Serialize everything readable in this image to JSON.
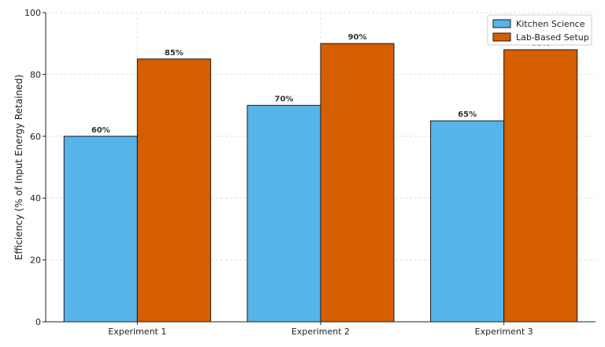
{
  "chart_data": {
    "type": "bar",
    "categories": [
      "Experiment 1",
      "Experiment 2",
      "Experiment 3"
    ],
    "series": [
      {
        "name": "Kitchen Science",
        "values": [
          60,
          70,
          65
        ],
        "labels": [
          "60%",
          "70%",
          "65%"
        ],
        "color": "#56B4E9"
      },
      {
        "name": "Lab-Based Setup",
        "values": [
          85,
          90,
          88
        ],
        "labels": [
          "85%",
          "90%",
          "88%"
        ],
        "color": "#D55E00"
      }
    ],
    "ylabel": "Efficiency (% of Input Energy Retained)",
    "xlabel": "",
    "ylim": [
      0,
      100
    ],
    "yticks": [
      0,
      20,
      40,
      60,
      80,
      100
    ],
    "grid": true,
    "legend_position": "top-right"
  }
}
